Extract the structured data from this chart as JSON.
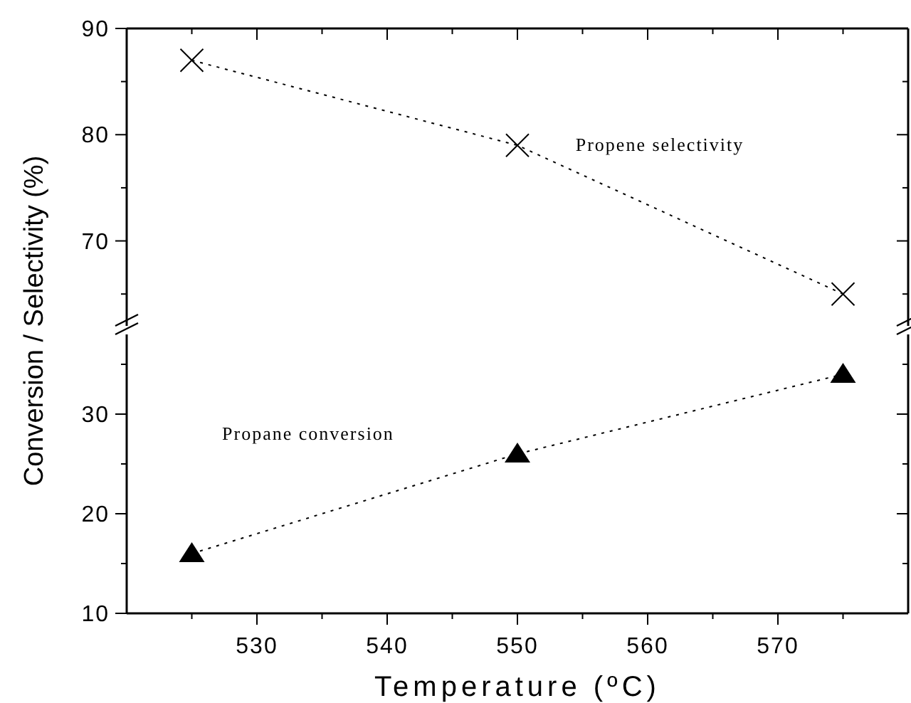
{
  "chart_data": [
    {
      "type": "line",
      "x": [
        525,
        550,
        575
      ],
      "xlim": [
        520,
        580
      ],
      "xticks": [
        {
          "value": 525,
          "label": null
        },
        530,
        {
          "value": 535,
          "label": null
        },
        540,
        {
          "value": 545,
          "label": null
        },
        550,
        {
          "value": 555,
          "label": null
        },
        560,
        {
          "value": 565,
          "label": null
        },
        570,
        {
          "value": 575,
          "label": null
        }
      ],
      "ylim": [
        62,
        90
      ],
      "yticks": [
        {
          "value": 65,
          "label": null
        },
        70,
        {
          "value": 75,
          "label": null
        },
        80,
        {
          "value": 85,
          "label": null
        },
        90
      ],
      "tick_labels": "y",
      "grid": false,
      "series": [
        {
          "name": "Propene selectivity",
          "color": "#000000",
          "values": [
            87,
            79,
            65
          ],
          "marker": "cross",
          "line_style": "dotted"
        }
      ]
    },
    {
      "type": "line",
      "x": [
        525,
        550,
        575
      ],
      "xlim": [
        520,
        580
      ],
      "xticks": [
        {
          "value": 525,
          "label": null
        },
        530,
        {
          "value": 535,
          "label": null
        },
        540,
        {
          "value": 545,
          "label": null
        },
        550,
        {
          "value": 555,
          "label": null
        },
        560,
        {
          "value": 565,
          "label": null
        },
        570,
        {
          "value": 575,
          "label": null
        }
      ],
      "ylim": [
        10,
        38
      ],
      "yticks": [
        10,
        {
          "value": 15,
          "label": null
        },
        20,
        {
          "value": 25,
          "label": null
        },
        30,
        {
          "value": 35,
          "label": null
        }
      ],
      "xlabel": "Temperature (ºC)",
      "ylabel": "Conversion / Selectivity (%)",
      "grid": false,
      "series": [
        {
          "name": "Propane conversion",
          "color": "#000000",
          "values": [
            16,
            26,
            34
          ],
          "marker": "triangle",
          "line_style": "dotted"
        }
      ]
    }
  ]
}
